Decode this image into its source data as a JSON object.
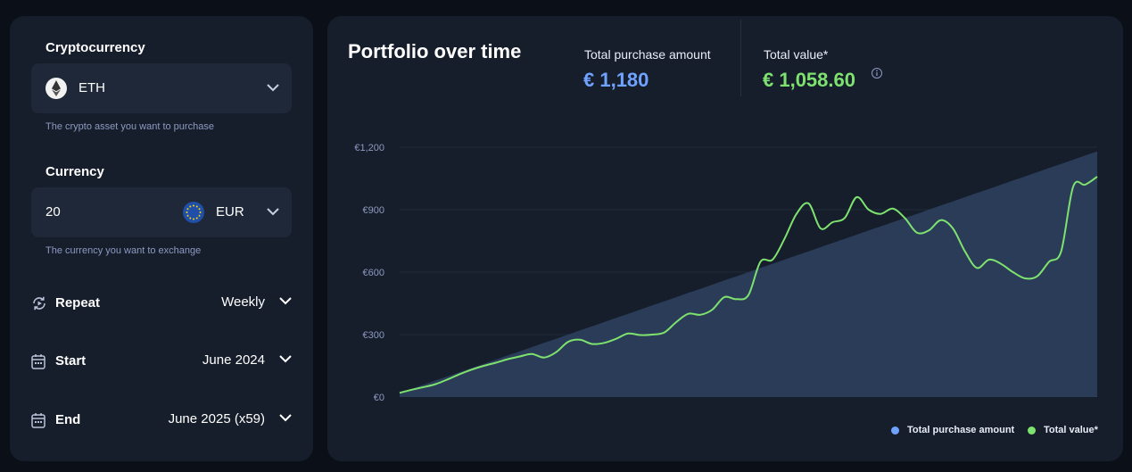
{
  "sidebar": {
    "crypto_label": "Cryptocurrency",
    "crypto_value": "ETH",
    "crypto_icon": "ethereum-icon",
    "crypto_hint": "The crypto asset you want to purchase",
    "currency_label": "Currency",
    "amount_value": "20",
    "currency_value": "EUR",
    "currency_icon": "eu-flag-icon",
    "currency_hint": "The currency you want to exchange",
    "repeat_label": "Repeat",
    "repeat_value": "Weekly",
    "start_label": "Start",
    "start_value": "June 2024",
    "end_label": "End",
    "end_value": "June 2025 (x59)"
  },
  "main": {
    "title": "Portfolio over time",
    "purchase_label": "Total purchase amount",
    "purchase_value": "€ 1,180",
    "value_label": "Total value*",
    "value_value": "€ 1,058.60",
    "info_icon": "info-icon",
    "legend": {
      "purchase": "Total purchase amount",
      "value": "Total value*"
    }
  },
  "colors": {
    "purchase": "#6fa3ff",
    "value": "#7ee26f",
    "area": "#2b3c58"
  },
  "chart_data": {
    "type": "area",
    "y_ticks": [
      "€0",
      "€300",
      "€600",
      "€900",
      "€1,200"
    ],
    "ylim": [
      0,
      1200
    ],
    "grid": true,
    "legend_position": "bottom-right",
    "n_points": 59,
    "series": [
      {
        "name": "Total purchase amount",
        "type": "area",
        "values": [
          20,
          40,
          60,
          80,
          100,
          120,
          140,
          160,
          180,
          200,
          220,
          240,
          260,
          280,
          300,
          320,
          340,
          360,
          380,
          400,
          420,
          440,
          460,
          480,
          500,
          520,
          540,
          560,
          580,
          600,
          620,
          640,
          660,
          680,
          700,
          720,
          740,
          760,
          780,
          800,
          820,
          840,
          860,
          880,
          900,
          920,
          940,
          960,
          980,
          1000,
          1020,
          1040,
          1060,
          1080,
          1100,
          1120,
          1140,
          1160,
          1180
        ]
      },
      {
        "name": "Total value*",
        "type": "line",
        "values": [
          20,
          35,
          48,
          62,
          85,
          110,
          132,
          150,
          165,
          182,
          195,
          207,
          190,
          215,
          265,
          275,
          255,
          260,
          280,
          305,
          298,
          300,
          310,
          360,
          400,
          395,
          420,
          480,
          470,
          490,
          650,
          660,
          760,
          880,
          930,
          810,
          840,
          860,
          960,
          900,
          880,
          905,
          860,
          790,
          800,
          850,
          810,
          700,
          620,
          660,
          640,
          600,
          570,
          580,
          650,
          700,
          1010,
          1020,
          1058.6
        ]
      }
    ]
  }
}
